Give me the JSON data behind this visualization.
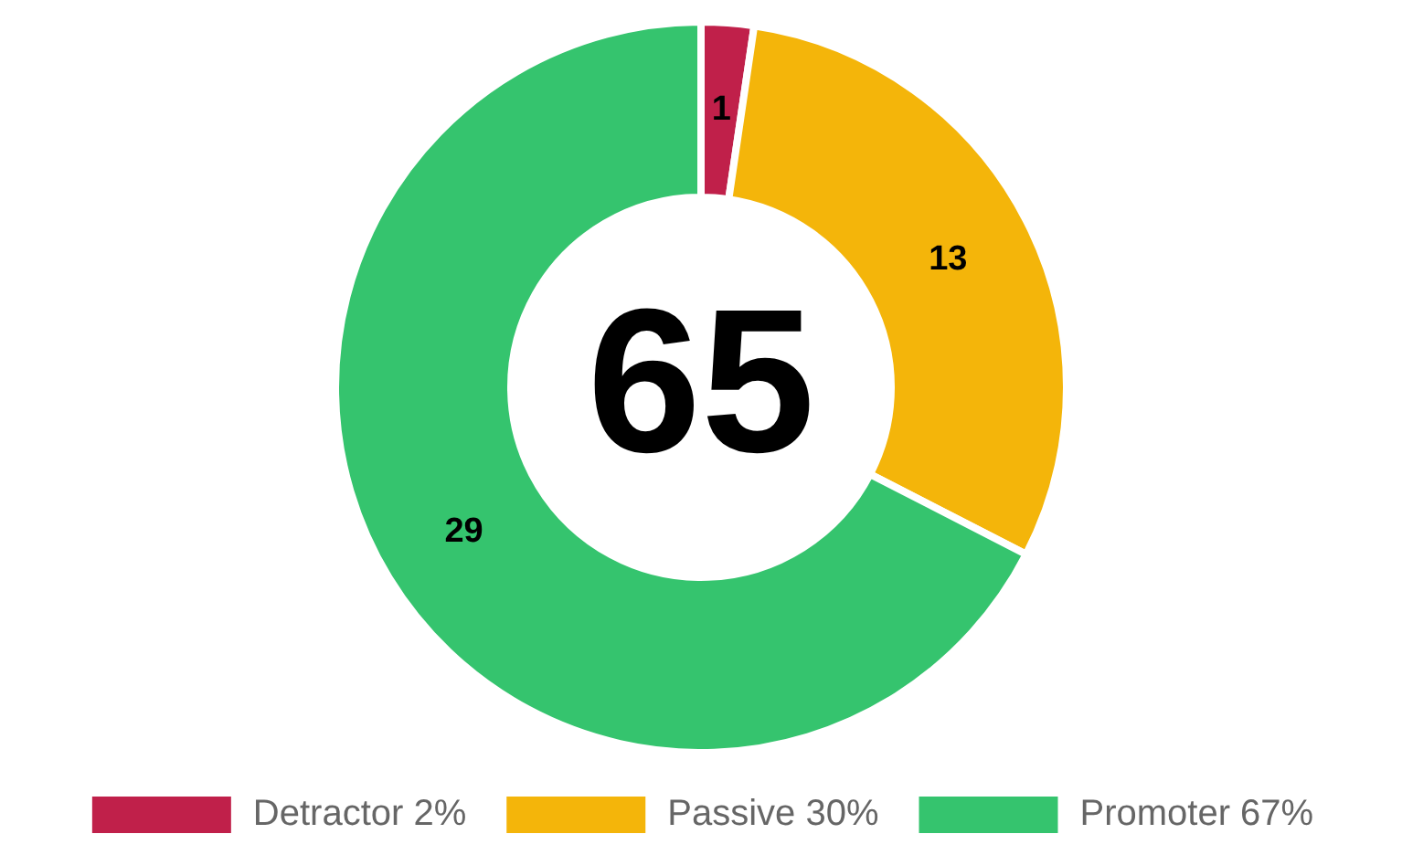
{
  "chart_data": {
    "type": "donut",
    "categories": [
      "Detractor 2%",
      "Passive 30%",
      "Promoter 67%"
    ],
    "values": [
      1,
      13,
      29
    ],
    "colors": [
      "#c0204a",
      "#f4b50a",
      "#35c46e"
    ],
    "data_labels": true,
    "legend": "bottom",
    "annotations": [
      "65"
    ]
  }
}
